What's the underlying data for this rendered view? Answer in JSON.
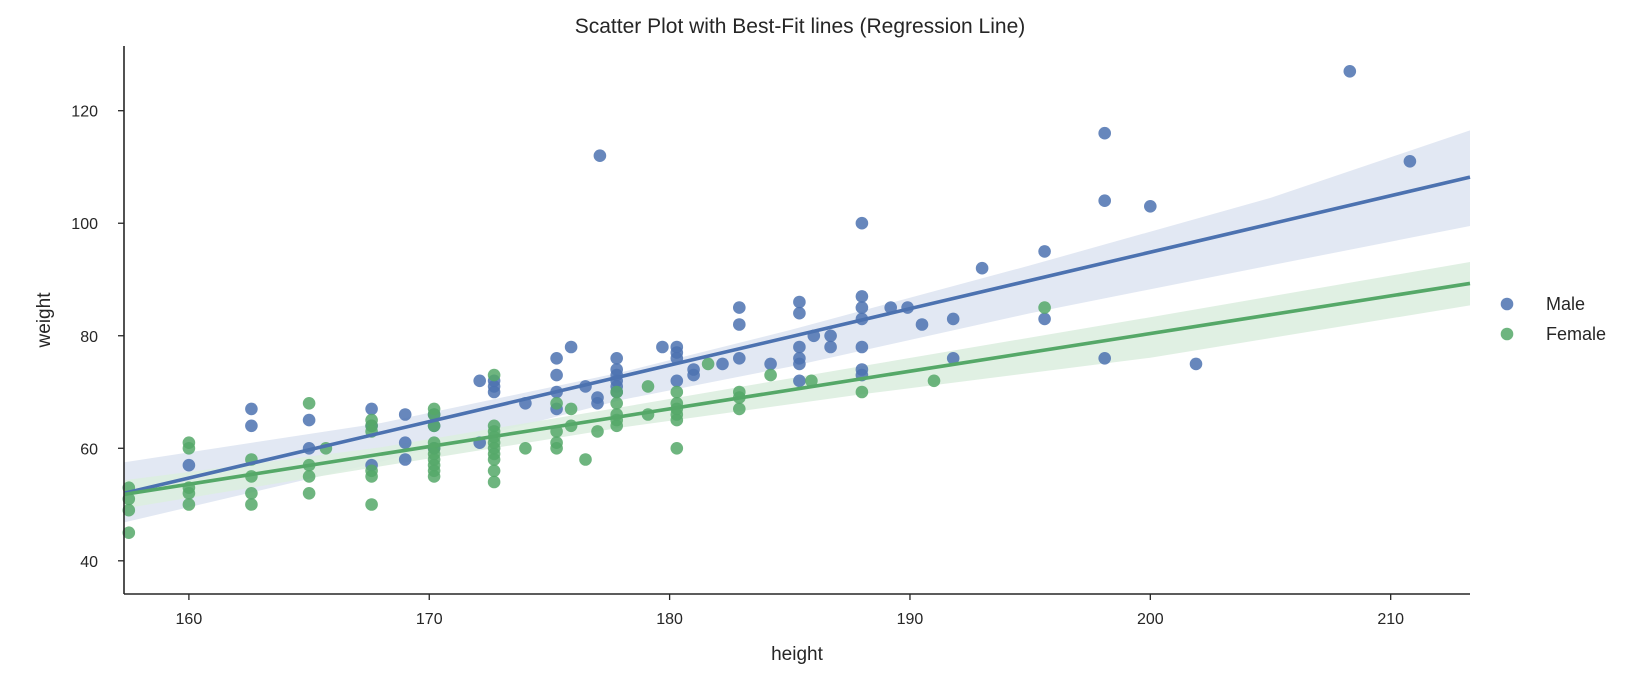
{
  "chart_data": {
    "type": "scatter",
    "title": "Scatter Plot with Best-Fit lines (Regression Line)",
    "xlabel": "height",
    "ylabel": "weight",
    "xlim": [
      157.3,
      213.3
    ],
    "ylim": [
      34.1,
      131.5
    ],
    "xticks": [
      160,
      170,
      180,
      190,
      200,
      210
    ],
    "yticks": [
      40,
      60,
      80,
      100,
      120
    ],
    "grid": false,
    "legend": "right",
    "series": [
      {
        "name": "Male",
        "color": "#4c72b0",
        "band_color": "#dfe6f2",
        "regression": {
          "x": [
            157.3,
            213.3
          ],
          "y": [
            52.0,
            108.2
          ]
        },
        "confidence_band": {
          "x": [
            157.3,
            168,
            178,
            185,
            195,
            205,
            213.3
          ],
          "upper": [
            57.5,
            64.5,
            73.5,
            81.0,
            92.5,
            104.5,
            116.5
          ],
          "lower": [
            46.8,
            57.6,
            68.6,
            74.5,
            84.0,
            92.5,
            99.5
          ]
        },
        "points": [
          [
            160,
            57
          ],
          [
            162.6,
            64
          ],
          [
            162.6,
            67
          ],
          [
            165,
            65
          ],
          [
            165,
            60
          ],
          [
            167.6,
            67
          ],
          [
            167.6,
            64
          ],
          [
            167.6,
            57
          ],
          [
            169,
            58
          ],
          [
            169,
            61
          ],
          [
            169,
            66
          ],
          [
            170.2,
            64
          ],
          [
            170.2,
            66
          ],
          [
            170.2,
            60
          ],
          [
            172.1,
            61
          ],
          [
            172.1,
            72
          ],
          [
            172.7,
            70
          ],
          [
            172.7,
            71
          ],
          [
            172.7,
            72
          ],
          [
            174,
            68
          ],
          [
            175.3,
            76
          ],
          [
            175.3,
            73
          ],
          [
            175.3,
            70
          ],
          [
            175.3,
            67
          ],
          [
            175.9,
            78
          ],
          [
            176.5,
            71
          ],
          [
            177,
            69
          ],
          [
            177,
            68
          ],
          [
            177.1,
            112
          ],
          [
            177.8,
            76
          ],
          [
            177.8,
            74
          ],
          [
            177.8,
            73
          ],
          [
            177.8,
            72
          ],
          [
            177.8,
            71
          ],
          [
            177.8,
            70
          ],
          [
            179.7,
            78
          ],
          [
            180.3,
            78
          ],
          [
            180.3,
            77
          ],
          [
            180.3,
            76
          ],
          [
            180.3,
            72
          ],
          [
            181,
            73
          ],
          [
            181,
            74
          ],
          [
            182.2,
            75
          ],
          [
            182.9,
            85
          ],
          [
            182.9,
            82
          ],
          [
            182.9,
            76
          ],
          [
            184.2,
            75
          ],
          [
            185.4,
            86
          ],
          [
            185.4,
            84
          ],
          [
            185.4,
            78
          ],
          [
            185.4,
            76
          ],
          [
            185.4,
            75
          ],
          [
            185.4,
            72
          ],
          [
            186,
            80
          ],
          [
            186.7,
            78
          ],
          [
            186.7,
            80
          ],
          [
            188,
            87
          ],
          [
            188,
            85
          ],
          [
            188,
            83
          ],
          [
            188,
            78
          ],
          [
            188,
            74
          ],
          [
            188,
            73
          ],
          [
            188,
            100
          ],
          [
            189.2,
            85
          ],
          [
            189.9,
            85
          ],
          [
            190.5,
            82
          ],
          [
            191.8,
            83
          ],
          [
            191.8,
            76
          ],
          [
            193,
            92
          ],
          [
            195.6,
            95
          ],
          [
            195.6,
            83
          ],
          [
            198.1,
            116
          ],
          [
            198.1,
            104
          ],
          [
            198.1,
            76
          ],
          [
            200,
            103
          ],
          [
            201.9,
            75
          ],
          [
            208.3,
            127
          ],
          [
            210.8,
            111
          ]
        ]
      },
      {
        "name": "Female",
        "color": "#55a868",
        "band_color": "#ddeee0",
        "regression": {
          "x": [
            157.3,
            213.3
          ],
          "y": [
            51.8,
            89.3
          ]
        },
        "confidence_band": {
          "x": [
            157.3,
            168,
            178,
            188,
            200,
            213.3
          ],
          "upper": [
            54.3,
            60.2,
            67.3,
            74.6,
            83.3,
            93.1
          ],
          "lower": [
            49.3,
            56.8,
            63.7,
            69.6,
            76.1,
            85.4
          ]
        },
        "points": [
          [
            157.5,
            53
          ],
          [
            157.5,
            51
          ],
          [
            157.5,
            49
          ],
          [
            157.5,
            45
          ],
          [
            160,
            61
          ],
          [
            160,
            60
          ],
          [
            160,
            53
          ],
          [
            160,
            52
          ],
          [
            160,
            50
          ],
          [
            162.6,
            58
          ],
          [
            162.6,
            55
          ],
          [
            162.6,
            52
          ],
          [
            162.6,
            50
          ],
          [
            165,
            68
          ],
          [
            165,
            57
          ],
          [
            165,
            55
          ],
          [
            165,
            52
          ],
          [
            165.7,
            60
          ],
          [
            167.6,
            65
          ],
          [
            167.6,
            64
          ],
          [
            167.6,
            63
          ],
          [
            167.6,
            56
          ],
          [
            167.6,
            55
          ],
          [
            167.6,
            50
          ],
          [
            170.2,
            67
          ],
          [
            170.2,
            66
          ],
          [
            170.2,
            64
          ],
          [
            170.2,
            61
          ],
          [
            170.2,
            60
          ],
          [
            170.2,
            59
          ],
          [
            170.2,
            58
          ],
          [
            170.2,
            57
          ],
          [
            170.2,
            56
          ],
          [
            170.2,
            55
          ],
          [
            172.7,
            73
          ],
          [
            172.7,
            64
          ],
          [
            172.7,
            63
          ],
          [
            172.7,
            62
          ],
          [
            172.7,
            61
          ],
          [
            172.7,
            60
          ],
          [
            172.7,
            59
          ],
          [
            172.7,
            58
          ],
          [
            172.7,
            56
          ],
          [
            172.7,
            54
          ],
          [
            174,
            60
          ],
          [
            175.3,
            68
          ],
          [
            175.3,
            63
          ],
          [
            175.3,
            61
          ],
          [
            175.3,
            60
          ],
          [
            175.9,
            67
          ],
          [
            175.9,
            64
          ],
          [
            176.5,
            58
          ],
          [
            177,
            63
          ],
          [
            177.8,
            70
          ],
          [
            177.8,
            68
          ],
          [
            177.8,
            66
          ],
          [
            177.8,
            65
          ],
          [
            177.8,
            64
          ],
          [
            179.1,
            71
          ],
          [
            179.1,
            66
          ],
          [
            180.3,
            70
          ],
          [
            180.3,
            68
          ],
          [
            180.3,
            67
          ],
          [
            180.3,
            66
          ],
          [
            180.3,
            65
          ],
          [
            180.3,
            60
          ],
          [
            181.6,
            75
          ],
          [
            182.9,
            70
          ],
          [
            182.9,
            69
          ],
          [
            182.9,
            67
          ],
          [
            184.2,
            73
          ],
          [
            185.9,
            72
          ],
          [
            188,
            70
          ],
          [
            191,
            72
          ],
          [
            195.6,
            85
          ]
        ]
      }
    ]
  }
}
